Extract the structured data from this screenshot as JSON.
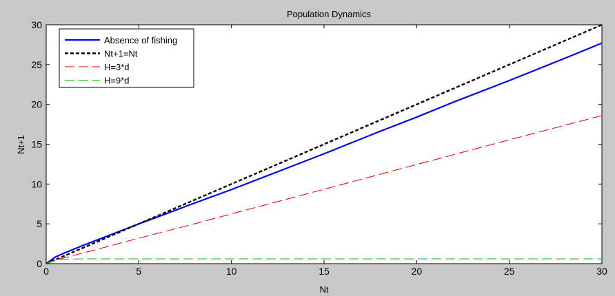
{
  "window": {
    "background": "#c8c8c8"
  },
  "chart_data": {
    "type": "line",
    "title": "Population Dynamics",
    "xlabel": "Nt",
    "ylabel": "Nt+1",
    "xlim": [
      0,
      30
    ],
    "ylim": [
      0,
      30
    ],
    "xticks": [
      0,
      5,
      10,
      15,
      20,
      25,
      30
    ],
    "yticks": [
      0,
      5,
      10,
      15,
      20,
      25,
      30
    ],
    "grid": false,
    "legend_position": "top-left",
    "series": [
      {
        "name": "Absence of fishing",
        "color": "#0000ff",
        "line_style": "solid",
        "x": [
          0,
          0.5,
          1,
          2,
          3,
          4,
          5,
          6,
          8,
          10,
          12,
          15,
          18,
          20,
          22,
          25,
          28,
          30
        ],
        "y": [
          0,
          0.85,
          1.35,
          2.3,
          3.2,
          4.1,
          5.0,
          5.85,
          7.6,
          9.3,
          11.1,
          13.8,
          16.6,
          18.4,
          20.3,
          23.0,
          25.8,
          27.7
        ]
      },
      {
        "name": "Nt+1=Nt",
        "color": "#000000",
        "line_style": "dotted-bold",
        "x": [
          0,
          30
        ],
        "y": [
          0,
          30
        ]
      },
      {
        "name": "H=3*d",
        "color": "#ff0000",
        "line_style": "dashed",
        "x": [
          0,
          0.5,
          1,
          2,
          3,
          5,
          8,
          10,
          15,
          20,
          25,
          30
        ],
        "y": [
          0,
          0.45,
          0.75,
          1.35,
          1.95,
          3.2,
          5.0,
          6.25,
          9.35,
          12.45,
          15.55,
          18.6
        ]
      },
      {
        "name": "H=9*d",
        "color": "#00cc00",
        "line_style": "dashed",
        "x": [
          0,
          0.5,
          1,
          2,
          3,
          5,
          10,
          20,
          30
        ],
        "y": [
          0,
          0.4,
          0.55,
          0.6,
          0.6,
          0.6,
          0.6,
          0.6,
          0.6
        ]
      }
    ]
  }
}
